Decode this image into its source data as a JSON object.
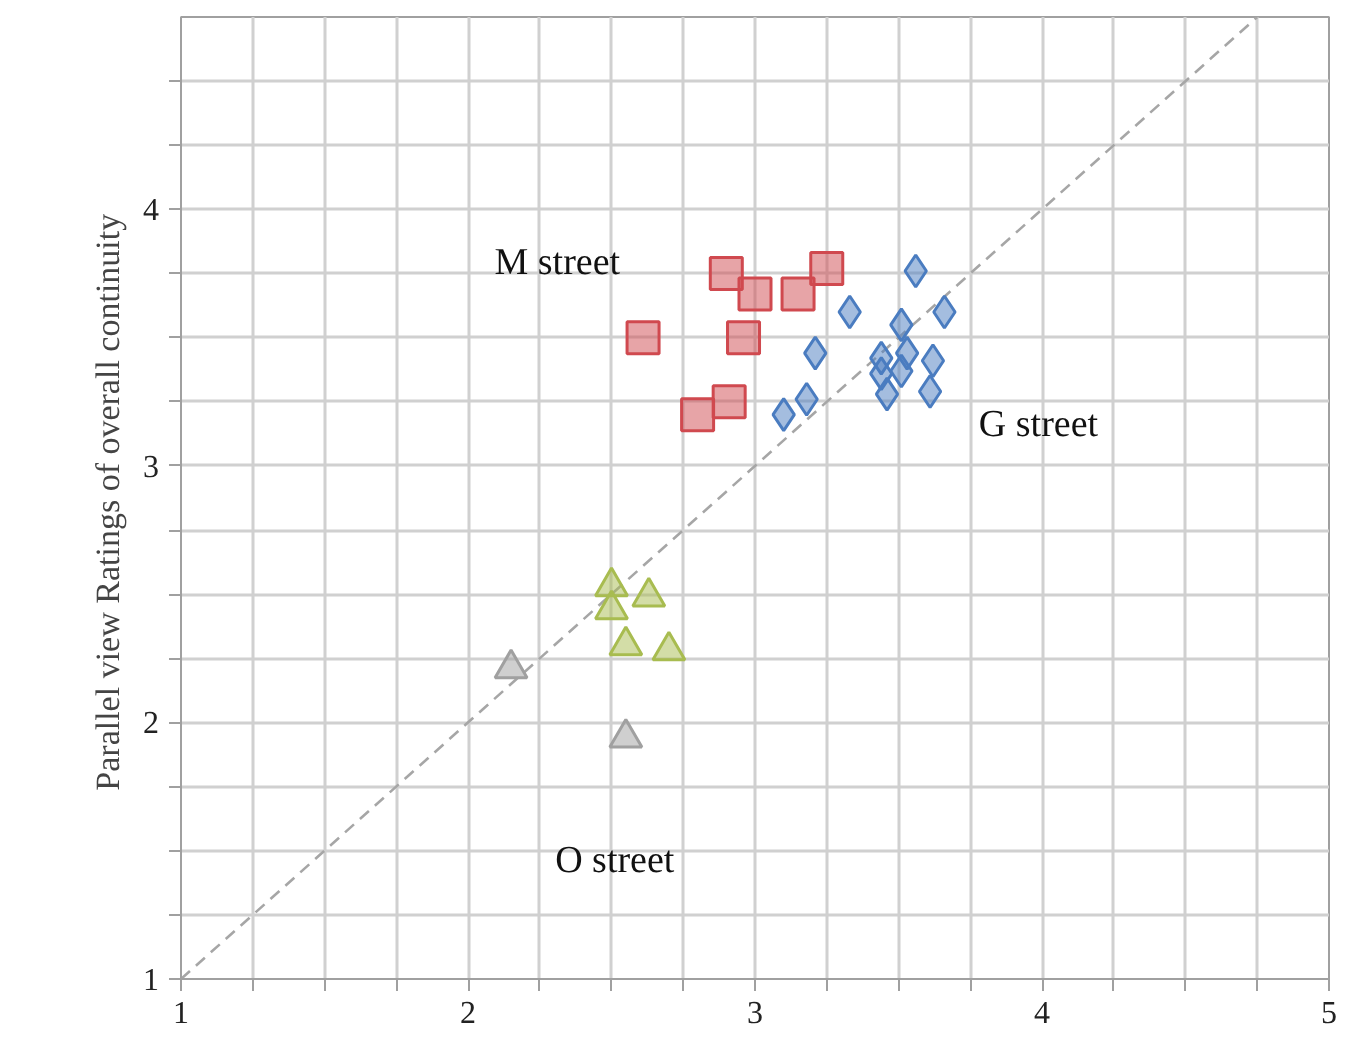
{
  "chart_data": {
    "type": "scatter",
    "ylabel": "Parallel view  Ratings of overall continuity",
    "xlim": [
      1,
      5
    ],
    "ylim": [
      1,
      4.75
    ],
    "xticks": [
      1,
      {
        "value": 1.25,
        "label": null
      },
      {
        "value": 1.5,
        "label": null
      },
      {
        "value": 1.75,
        "label": null
      },
      2,
      {
        "value": 2.25,
        "label": null
      },
      {
        "value": 2.5,
        "label": null
      },
      {
        "value": 2.75,
        "label": null
      },
      3,
      {
        "value": 3.25,
        "label": null
      },
      {
        "value": 3.5,
        "label": null
      },
      {
        "value": 3.75,
        "label": null
      },
      4,
      {
        "value": 4.25,
        "label": null
      },
      {
        "value": 4.5,
        "label": null
      },
      {
        "value": 4.75,
        "label": null
      },
      5
    ],
    "yticks": [
      1,
      {
        "value": 1.25,
        "label": null
      },
      {
        "value": 1.5,
        "label": null
      },
      {
        "value": 1.75,
        "label": null
      },
      2,
      {
        "value": 2.25,
        "label": null
      },
      {
        "value": 2.5,
        "label": null
      },
      {
        "value": 2.75,
        "label": null
      },
      3,
      {
        "value": 3.25,
        "label": null
      },
      {
        "value": 3.5,
        "label": null
      },
      {
        "value": 3.75,
        "label": null
      },
      4,
      {
        "value": 4.25,
        "label": null
      },
      {
        "value": 4.5,
        "label": null
      }
    ],
    "grid": true,
    "series": [
      {
        "name": "M street",
        "marker": "square",
        "color": "#d0494f",
        "x": [
          2.9,
          3.0,
          3.15,
          3.25,
          2.61,
          2.96,
          2.91,
          2.8
        ],
        "values": [
          3.75,
          3.67,
          3.67,
          3.77,
          3.5,
          3.5,
          3.25,
          3.2
        ]
      },
      {
        "name": "G street",
        "marker": "diamond",
        "color": "#4a7cc0",
        "x": [
          3.56,
          3.33,
          3.66,
          3.51,
          3.21,
          3.44,
          3.53,
          3.62,
          3.44,
          3.51,
          3.46,
          3.61,
          3.18,
          3.1
        ],
        "values": [
          3.76,
          3.6,
          3.6,
          3.55,
          3.44,
          3.42,
          3.44,
          3.41,
          3.36,
          3.37,
          3.28,
          3.29,
          3.26,
          3.2
        ]
      },
      {
        "name": "O street",
        "marker": "triangle",
        "colors": [
          "#a8bc50",
          "#a8bc50",
          "#a8bc50",
          "#a8bc50",
          "#a8bc50",
          "#a0a0a0",
          "#a0a0a0"
        ],
        "x": [
          2.5,
          2.63,
          2.5,
          2.55,
          2.7,
          2.15,
          2.55
        ],
        "values": [
          2.53,
          2.49,
          2.44,
          2.3,
          2.28,
          2.21,
          1.94
        ]
      },
      {
        "type": "line",
        "line_style": "dashed",
        "marker": "none",
        "color": "#a6a6a6",
        "x": [
          1,
          4.75
        ],
        "values": [
          1,
          4.75
        ]
      }
    ]
  }
}
